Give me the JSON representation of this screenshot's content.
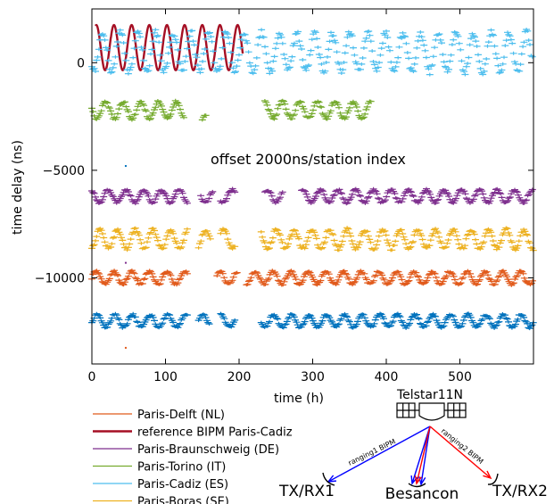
{
  "chart_data": {
    "type": "line",
    "title": "",
    "xlabel": "time (h)",
    "ylabel": "time delay (ns)",
    "xlim": [
      0,
      600
    ],
    "ylim": [
      -14000,
      2500
    ],
    "x_ticks": [
      0,
      100,
      200,
      300,
      400,
      500
    ],
    "y_ticks": [
      0,
      -5000,
      -10000
    ],
    "x_tick_labels": [
      "0",
      "100",
      "200",
      "300",
      "400",
      "500"
    ],
    "y_tick_labels": [
      "0",
      "−5000",
      "−10000"
    ],
    "grid": false,
    "annotation": "offset 2000ns/station index",
    "legend_position": "below-left",
    "series": [
      {
        "name": "Paris-Delft (NL)",
        "color": "#e15a1b",
        "kind": "diurnal-dots",
        "offset": -10000,
        "amplitude": 300,
        "period_h": 24,
        "segments": [
          [
            0,
            130
          ],
          [
            170,
            198
          ],
          [
            210,
            600
          ]
        ]
      },
      {
        "name": "reference BIPM Paris-Cadiz",
        "color": "#a50f24",
        "kind": "line",
        "offset": 700,
        "amplitude": 1050,
        "period_h": 24,
        "segments": [
          [
            5,
            205
          ]
        ]
      },
      {
        "name": "Paris-Braunschweig (DE)",
        "color": "#7e2f8e",
        "kind": "diurnal-dots",
        "offset": -6200,
        "amplitude": 300,
        "period_h": 24,
        "segments": [
          [
            0,
            130
          ],
          [
            148,
            165
          ],
          [
            175,
            195
          ],
          [
            235,
            260
          ],
          [
            285,
            600
          ]
        ]
      },
      {
        "name": "Paris-Torino (IT)",
        "color": "#76ab2f",
        "kind": "diurnal-dots",
        "offset": -2200,
        "amplitude": 400,
        "period_h": 24,
        "segments": [
          [
            0,
            125
          ],
          [
            150,
            155
          ],
          [
            235,
            380
          ]
        ]
      },
      {
        "name": "Paris-Cadiz (ES)",
        "color": "#4dbeee",
        "kind": "diurnal-dots",
        "offset": 500,
        "amplitude": 900,
        "period_h": 24,
        "segments": [
          [
            0,
            600
          ]
        ]
      },
      {
        "name": "Paris-Boras (SE)",
        "color": "#edb120",
        "kind": "diurnal-dots",
        "offset": -8200,
        "amplitude": 450,
        "period_h": 24,
        "segments": [
          [
            0,
            130
          ],
          [
            145,
            162
          ],
          [
            175,
            195
          ],
          [
            230,
            600
          ]
        ]
      },
      {
        "name": "",
        "color": "#0072bd",
        "kind": "diurnal-dots",
        "offset": -12000,
        "amplitude": 300,
        "period_h": 24,
        "segments": [
          [
            0,
            130
          ],
          [
            145,
            160
          ],
          [
            175,
            195
          ],
          [
            230,
            600
          ]
        ]
      }
    ],
    "outliers": [
      {
        "x": 46,
        "y": -4800,
        "color": "#0072bd"
      },
      {
        "x": 46,
        "y": -13250,
        "color": "#e15a1b"
      },
      {
        "x": 46,
        "y": -9300,
        "color": "#7e2f8e"
      },
      {
        "x": 46,
        "y": -10300,
        "color": "#e15a1b"
      }
    ]
  },
  "diagram": {
    "satellite_label": "Telstar11N",
    "left_station_label": "TX/RX1",
    "center_station_label": "Besancon",
    "right_station_label": "TX/RX2",
    "left_link_label": "ranging1 BIPM",
    "right_link_label": "ranging2 BIPM",
    "colors": {
      "left": "#0000ff",
      "right": "#ff0000",
      "ink": "#000000"
    }
  }
}
